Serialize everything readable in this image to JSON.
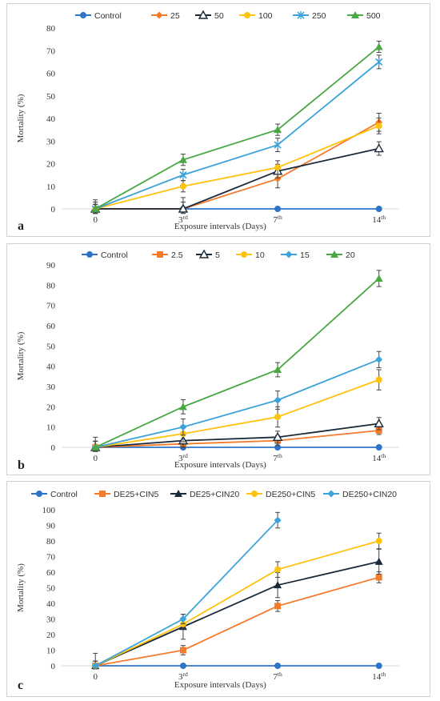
{
  "colors": {
    "Control": "#2E75C8",
    "s2": "#F47B2C",
    "s3": "#1B2A3A",
    "s4": "#FFC20E",
    "s5": "#3BA3D9",
    "s6": "#48A843"
  },
  "chart_data": [
    {
      "type": "line",
      "panel_label": "a",
      "xlabel": "Exposure intervals (Days)",
      "ylabel": "Mortality (%)",
      "x": [
        "0",
        "3",
        "7",
        "14"
      ],
      "x_superscripts": [
        "",
        "rd",
        "th",
        "th"
      ],
      "ylim": [
        0,
        80
      ],
      "yticks": [
        0,
        10,
        20,
        30,
        40,
        50,
        60,
        70,
        80
      ],
      "ytick_labels": [
        "0",
        "10",
        "20",
        "30",
        "40",
        "50",
        "60",
        "70",
        "80"
      ],
      "legend": "top",
      "grid": false,
      "series": [
        {
          "name": "Control",
          "marker": "circle",
          "color": "#2E75C8",
          "values": [
            0,
            0,
            0,
            0
          ],
          "errors": [
            0,
            0,
            0,
            0
          ]
        },
        {
          "name": "25",
          "marker": "diamond",
          "color": "#F47B2C",
          "values": [
            0,
            0,
            13.3,
            38.3
          ],
          "errors": [
            3,
            3,
            4,
            4
          ]
        },
        {
          "name": "50",
          "marker": "triangle-open",
          "color": "#1B2A3A",
          "values": [
            0,
            0,
            16.7,
            26.7
          ],
          "errors": [
            4,
            5,
            3,
            3
          ]
        },
        {
          "name": "100",
          "marker": "circle",
          "color": "#FFC20E",
          "values": [
            0,
            10,
            18.3,
            36.7
          ],
          "errors": [
            2,
            2.5,
            3,
            3.5
          ]
        },
        {
          "name": "250",
          "marker": "x",
          "color": "#3BA3D9",
          "values": [
            0,
            15,
            28.3,
            65
          ],
          "errors": [
            2,
            2.5,
            3,
            3
          ]
        },
        {
          "name": "500",
          "marker": "triangle",
          "color": "#48A843",
          "values": [
            0,
            21.7,
            35,
            71.7
          ],
          "errors": [
            2,
            2.5,
            2.5,
            2.5
          ]
        }
      ]
    },
    {
      "type": "line",
      "panel_label": "b",
      "xlabel": "Exposure intervals (Days)",
      "ylabel": "Mortality (%)",
      "x": [
        "0",
        "3",
        "7",
        "14"
      ],
      "x_superscripts": [
        "",
        "rd",
        "th",
        "th"
      ],
      "ylim": [
        0,
        90
      ],
      "yticks": [
        0,
        10,
        20,
        30,
        40,
        50,
        60,
        70,
        80,
        90
      ],
      "ytick_labels": [
        "0",
        "10",
        "20",
        "30",
        "40",
        "50",
        "60",
        "70",
        "80",
        "90"
      ],
      "legend": "top",
      "grid": false,
      "series": [
        {
          "name": "Control",
          "marker": "circle",
          "color": "#2E75C8",
          "values": [
            0,
            0,
            0,
            0
          ],
          "errors": [
            0,
            0,
            0,
            0
          ]
        },
        {
          "name": "2.5",
          "marker": "square",
          "color": "#F47B2C",
          "values": [
            0,
            1.7,
            3.3,
            8.3
          ],
          "errors": [
            3,
            2,
            2.5,
            2
          ]
        },
        {
          "name": "5",
          "marker": "triangle-open",
          "color": "#1B2A3A",
          "values": [
            0,
            3.3,
            5,
            11.7
          ],
          "errors": [
            5,
            3,
            3,
            3
          ]
        },
        {
          "name": "10",
          "marker": "circle",
          "color": "#FFC20E",
          "values": [
            0,
            6.7,
            15,
            33.3
          ],
          "errors": [
            3,
            4,
            5,
            5
          ]
        },
        {
          "name": "15",
          "marker": "diamond",
          "color": "#3BA3D9",
          "values": [
            0,
            10,
            23.3,
            43.3
          ],
          "errors": [
            3,
            4,
            4.5,
            4
          ]
        },
        {
          "name": "20",
          "marker": "triangle",
          "color": "#48A843",
          "values": [
            0,
            20,
            38.3,
            83.3
          ],
          "errors": [
            3,
            3.5,
            3.5,
            4
          ]
        }
      ]
    },
    {
      "type": "line",
      "panel_label": "c",
      "xlabel": "Exposure intervals (Days)",
      "ylabel": "Mortality (%)",
      "x": [
        "0",
        "3",
        "7",
        "14"
      ],
      "x_superscripts": [
        "",
        "rd",
        "th",
        "th"
      ],
      "ylim": [
        0,
        100
      ],
      "yticks": [
        0,
        10,
        20,
        30,
        40,
        50,
        60,
        70,
        80,
        90,
        100
      ],
      "ytick_labels": [
        "0",
        "10",
        "20",
        "30",
        "40",
        "50",
        "60",
        "70",
        "80",
        "90",
        "100"
      ],
      "legend": "top",
      "grid": false,
      "series": [
        {
          "name": "Control",
          "marker": "circle",
          "color": "#2E75C8",
          "values": [
            0,
            0,
            0,
            0
          ],
          "errors": [
            0,
            0,
            0,
            0
          ]
        },
        {
          "name": "DE25+CIN5",
          "marker": "square",
          "color": "#F47B2C",
          "values": [
            0,
            10,
            38.3,
            56.7
          ],
          "errors": [
            3,
            3,
            3.5,
            3.5
          ]
        },
        {
          "name": "DE25+CIN20",
          "marker": "triangle",
          "color": "#1B2A3A",
          "values": [
            0,
            25,
            51.7,
            66.7
          ],
          "errors": [
            8,
            8,
            8,
            8
          ]
        },
        {
          "name": "DE250+CIN5",
          "marker": "circle",
          "color": "#FFC20E",
          "values": [
            0,
            26.7,
            61.7,
            80
          ],
          "errors": [
            3,
            3,
            5,
            5
          ]
        },
        {
          "name": "DE250+CIN20",
          "marker": "diamond",
          "color": "#3BA3D9",
          "values": [
            0,
            30,
            93.3,
            null
          ],
          "errors": [
            3,
            3,
            5,
            0
          ]
        }
      ]
    }
  ]
}
